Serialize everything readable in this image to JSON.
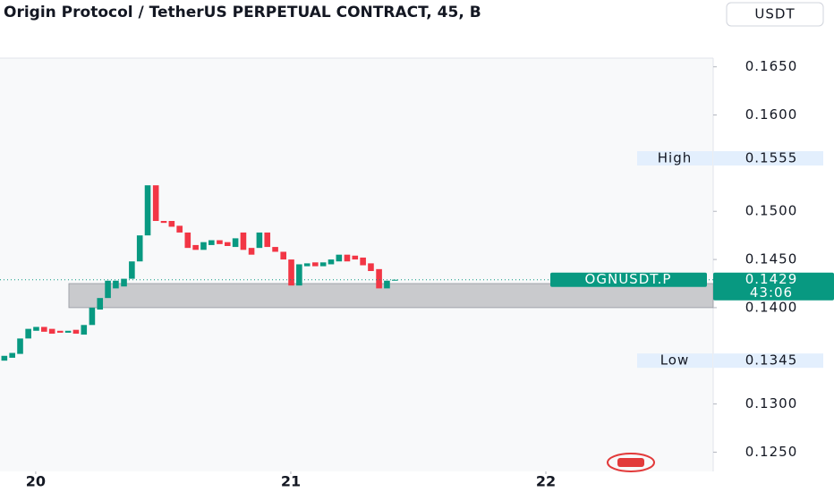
{
  "chart_data": {
    "type": "candlestick",
    "title": "Origin Protocol / TetherUS PERPETUAL CONTRACT, 45, B",
    "currency": "USDT",
    "x": [
      19.877,
      19.908,
      19.939,
      19.971,
      20.002,
      20.033,
      20.064,
      20.096,
      20.127,
      20.158,
      20.189,
      20.221,
      20.252,
      20.283,
      20.314,
      20.346,
      20.377,
      20.408,
      20.439,
      20.471,
      20.502,
      20.533,
      20.564,
      20.596,
      20.627,
      20.658,
      20.689,
      20.721,
      20.752,
      20.783,
      20.814,
      20.846,
      20.877,
      20.908,
      20.939,
      20.971,
      21.002,
      21.033,
      21.064,
      21.096,
      21.127,
      21.158,
      21.189,
      21.221,
      21.252,
      21.283,
      21.314,
      21.346,
      21.377,
      21.408
    ],
    "open": [
      0.1345,
      0.1348,
      0.1352,
      0.1368,
      0.1376,
      0.138,
      0.1378,
      0.1376,
      0.1374,
      0.1377,
      0.1372,
      0.1382,
      0.1398,
      0.141,
      0.142,
      0.1422,
      0.143,
      0.1448,
      0.1475,
      0.1527,
      0.149,
      0.149,
      0.1485,
      0.1478,
      0.1465,
      0.146,
      0.1465,
      0.147,
      0.1468,
      0.1463,
      0.1478,
      0.1462,
      0.1462,
      0.1478,
      0.1463,
      0.1458,
      0.145,
      0.1423,
      0.1443,
      0.1447,
      0.1443,
      0.1445,
      0.1448,
      0.1455,
      0.1454,
      0.1452,
      0.1446,
      0.144,
      0.142,
      0.1428
    ],
    "high": {
      "value": 0.1555,
      "label": "0.1555"
    },
    "low": {
      "value": 0.1345,
      "label": "0.1345"
    },
    "close": [
      0.135,
      0.1353,
      0.1368,
      0.1378,
      0.138,
      0.1375,
      0.1373,
      0.1374,
      0.1376,
      0.1373,
      0.1382,
      0.14,
      0.141,
      0.1428,
      0.1428,
      0.143,
      0.1448,
      0.1475,
      0.1527,
      0.149,
      0.1488,
      0.1484,
      0.1478,
      0.1462,
      0.146,
      0.1468,
      0.147,
      0.1466,
      0.1464,
      0.1472,
      0.146,
      0.1455,
      0.1478,
      0.1463,
      0.1458,
      0.145,
      0.1423,
      0.1445,
      0.1446,
      0.1443,
      0.1447,
      0.145,
      0.1455,
      0.1448,
      0.145,
      0.1444,
      0.1438,
      0.142,
      0.1428,
      0.1429
    ],
    "up_color": "#089981",
    "down_color": "#f23645",
    "xlim": [
      19.86,
      22.656
    ],
    "xticks": [
      20,
      21,
      22
    ],
    "ylim": [
      0.123,
      0.1659
    ],
    "yticks": [
      {
        "value": 0.165,
        "label": "0.1650"
      },
      {
        "value": 0.16,
        "label": "0.1600"
      },
      {
        "value": 0.15,
        "label": "0.1500"
      },
      {
        "value": 0.145,
        "label": "0.1450"
      },
      {
        "value": 0.14,
        "label": "0.1400"
      },
      {
        "value": 0.13,
        "label": "0.1300"
      },
      {
        "value": 0.125,
        "label": "0.1250"
      }
    ],
    "zone_start": 20.13,
    "zone_range": [
      0.14,
      0.1425
    ],
    "high_label": "High",
    "low_label": "Low",
    "symbol": "OGNUSDT.P",
    "last": {
      "value": 0.1429,
      "label": "0.1429"
    },
    "countdown": "43:06"
  }
}
